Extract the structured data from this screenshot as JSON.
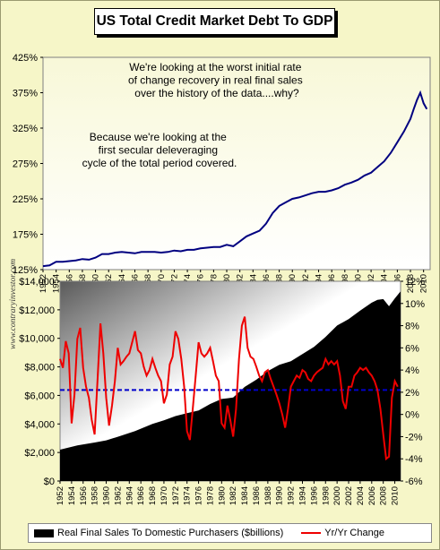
{
  "title": "US Total Credit Market Debt To GDP",
  "watermark": "www.contraryinvestor.com",
  "colors": {
    "background": "#f6f6c8",
    "top_line": "#000080",
    "bars": "#000000",
    "yoy_line": "#ee0000",
    "avg_line": "#0000cc"
  },
  "chart_data": [
    {
      "type": "line",
      "title": "US Total Credit Market Debt To GDP",
      "yaxis_tick_labels": [
        "125%",
        "175%",
        "225%",
        "275%",
        "325%",
        "375%",
        "425%"
      ],
      "ylim": [
        125,
        425
      ],
      "xaxis_tick_labels": [
        "1952",
        "1954",
        "1956",
        "1958",
        "1960",
        "1962",
        "1964",
        "1966",
        "1968",
        "1970",
        "1972",
        "1974",
        "1976",
        "1978",
        "1980",
        "1982",
        "1984",
        "1986",
        "1988",
        "1990",
        "1992",
        "1994",
        "1996",
        "1998",
        "2000",
        "2002",
        "2004",
        "2006",
        "2008",
        "2010"
      ],
      "annotations": [
        "We're looking at the worst initial rate of change recovery in real final sales over the history of the data....why?",
        "Because we're looking at the first secular deleveraging cycle of the total period covered."
      ],
      "series": [
        {
          "x": [
            1952,
            1953,
            1954,
            1955,
            1956,
            1957,
            1958,
            1959,
            1960,
            1961,
            1962,
            1963,
            1964,
            1965,
            1966,
            1967,
            1968,
            1969,
            1970,
            1971,
            1972,
            1973,
            1974,
            1975,
            1976,
            1977,
            1978,
            1979,
            1980,
            1981,
            1982,
            1983,
            1984,
            1985,
            1986,
            1987,
            1988,
            1989,
            1990,
            1991,
            1992,
            1993,
            1994,
            1995,
            1996,
            1997,
            1998,
            1999,
            2000,
            2001,
            2002,
            2003,
            2004,
            2005,
            2006,
            2007,
            2008,
            2008.5,
            2009,
            2009.5,
            2010,
            2010.5
          ],
          "y": [
            130,
            131,
            136,
            136,
            137,
            138,
            140,
            139,
            142,
            147,
            147,
            149,
            150,
            149,
            148,
            150,
            150,
            150,
            149,
            150,
            152,
            151,
            153,
            153,
            155,
            156,
            157,
            157,
            160,
            158,
            165,
            172,
            176,
            180,
            190,
            205,
            215,
            220,
            225,
            227,
            230,
            233,
            235,
            235,
            237,
            240,
            245,
            248,
            252,
            258,
            262,
            270,
            278,
            290,
            305,
            320,
            338,
            352,
            365,
            375,
            360,
            352
          ]
        }
      ]
    },
    {
      "type": "area",
      "y_left_tick_labels": [
        "$0",
        "$2,000",
        "$4,000",
        "$6,000",
        "$8,000",
        "$10,000",
        "$12,000",
        "$14,000"
      ],
      "ylim_left": [
        0,
        14000
      ],
      "y_right_tick_labels": [
        "-6%",
        "-4%",
        "-2%",
        "0%",
        "2%",
        "4%",
        "6%",
        "8%",
        "10%",
        "12%"
      ],
      "ylim_right": [
        -6,
        12
      ],
      "xaxis_tick_labels": [
        "1952",
        "1954",
        "1956",
        "1958",
        "1960",
        "1962",
        "1964",
        "1966",
        "1968",
        "1970",
        "1972",
        "1974",
        "1976",
        "1978",
        "1980",
        "1982",
        "1984",
        "1986",
        "1988",
        "1990",
        "1992",
        "1994",
        "1996",
        "1998",
        "2000",
        "2002",
        "2004",
        "2006",
        "2008",
        "2010"
      ],
      "reference_line_right_axis": 2.2,
      "series": [
        {
          "name": "Real Final Sales To Domestic Purchasers ($billions)",
          "axis": "left",
          "x": [
            1952,
            1955,
            1958,
            1960,
            1962,
            1965,
            1968,
            1970,
            1972,
            1974,
            1976,
            1978,
            1980,
            1982,
            1984,
            1986,
            1988,
            1990,
            1992,
            1994,
            1996,
            1998,
            2000,
            2002,
            2004,
            2006,
            2007,
            2008,
            2009,
            2010,
            2011
          ],
          "y": [
            2200,
            2500,
            2700,
            2850,
            3100,
            3500,
            4000,
            4250,
            4550,
            4750,
            4950,
            5400,
            5750,
            5850,
            6600,
            7100,
            7700,
            8150,
            8400,
            8900,
            9400,
            10100,
            10900,
            11350,
            11950,
            12500,
            12700,
            12750,
            12250,
            12800,
            13300
          ]
        },
        {
          "name": "Yr/Yr Change",
          "axis": "right",
          "x": [
            1952,
            1952.5,
            1953,
            1953.5,
            1954,
            1954.5,
            1955,
            1955.5,
            1956,
            1956.5,
            1957,
            1957.5,
            1958,
            1958.5,
            1959,
            1959.5,
            1960,
            1960.5,
            1961,
            1961.5,
            1962,
            1962.5,
            1963,
            1963.5,
            1964,
            1964.5,
            1965,
            1965.5,
            1966,
            1966.5,
            1967,
            1967.5,
            1968,
            1968.5,
            1969,
            1969.5,
            1970,
            1970.5,
            1971,
            1971.5,
            1972,
            1972.5,
            1973,
            1973.5,
            1974,
            1974.5,
            1975,
            1975.5,
            1976,
            1976.5,
            1977,
            1977.5,
            1978,
            1978.5,
            1979,
            1979.5,
            1980,
            1980.5,
            1981,
            1981.5,
            1982,
            1982.5,
            1983,
            1983.5,
            1984,
            1984.5,
            1985,
            1985.5,
            1986,
            1986.5,
            1987,
            1987.5,
            1988,
            1988.5,
            1989,
            1989.5,
            1990,
            1990.5,
            1991,
            1991.5,
            1992,
            1992.5,
            1993,
            1993.5,
            1994,
            1994.5,
            1995,
            1995.5,
            1996,
            1996.5,
            1997,
            1997.5,
            1998,
            1998.5,
            1999,
            1999.5,
            2000,
            2000.5,
            2001,
            2001.5,
            2002,
            2002.5,
            2003,
            2003.5,
            2004,
            2004.5,
            2005,
            2005.5,
            2006,
            2006.5,
            2007,
            2007.5,
            2008,
            2008.5,
            2009,
            2009.5,
            2010,
            2010.5
          ],
          "y": [
            5,
            4.2,
            6.6,
            5.5,
            -0.8,
            1.8,
            6.8,
            7.8,
            4.2,
            2.5,
            1.5,
            -0.5,
            -1.8,
            3.2,
            8.2,
            5.5,
            1.5,
            -1,
            0.8,
            3,
            6,
            4.5,
            4.8,
            5.2,
            5.5,
            6.5,
            7.5,
            5.8,
            5.5,
            4.3,
            3.5,
            4,
            5,
            4.2,
            3.5,
            3,
            1,
            1.8,
            4.5,
            5.2,
            7.5,
            6.8,
            5,
            2.5,
            -1.5,
            -2.3,
            0.5,
            3.5,
            6.5,
            5.5,
            5.2,
            5.5,
            6,
            4.8,
            3.5,
            3,
            -0.8,
            -1.2,
            0.8,
            -0.5,
            -2,
            0.5,
            5,
            8,
            8.8,
            6,
            5.2,
            5,
            4.3,
            3.5,
            3,
            3.8,
            4,
            3.2,
            2.5,
            1.8,
            1,
            0,
            -1.2,
            0.5,
            2.5,
            3,
            3.5,
            3.3,
            4,
            3.8,
            3.2,
            3,
            3.5,
            3.8,
            4,
            4.2,
            5,
            4.5,
            4.8,
            4.5,
            4.8,
            3.5,
            1.2,
            0.5,
            2.5,
            2.5,
            3.5,
            3.8,
            4.2,
            4,
            4.2,
            3.8,
            3.5,
            3,
            2.2,
            0.5,
            -1.8,
            -4,
            -3.8,
            1.5,
            3,
            2.5
          ]
        }
      ]
    }
  ]
}
